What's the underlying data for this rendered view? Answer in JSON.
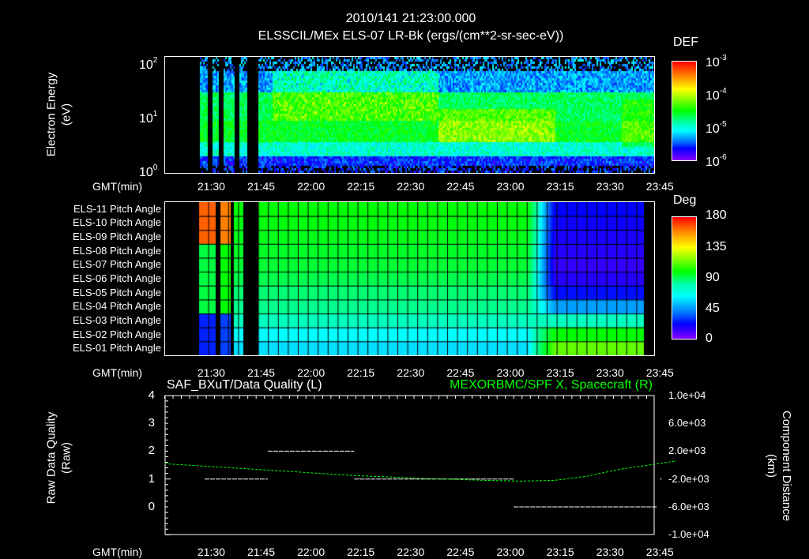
{
  "header": {
    "timestamp": "2010/141 21:23:00.000",
    "title": "ELSSCIL/MEx ELS-07 LR-Bk  (ergs/(cm**2-sr-sec-eV))"
  },
  "time_axis": {
    "label": "GMT(min)",
    "ticks": [
      "21:30",
      "21:45",
      "22:00",
      "22:15",
      "22:30",
      "22:45",
      "23:00",
      "23:15",
      "23:30",
      "23:45"
    ],
    "start_min": -7,
    "end_min": 140
  },
  "chart_data": [
    {
      "type": "heatmap",
      "name": "electron-spectrogram",
      "ylabel_line1": "Electron Energy",
      "ylabel_line2": "(eV)",
      "y_scale": "log",
      "ylim_eV": [
        1,
        140
      ],
      "yticks": [
        {
          "base": "10",
          "exp": "0"
        },
        {
          "base": "10",
          "exp": "1"
        },
        {
          "base": "10",
          "exp": "2"
        }
      ],
      "colorbar": {
        "title": "DEF",
        "scale": "log",
        "range": [
          1e-06,
          0.001
        ],
        "ticks": [
          {
            "base": "10",
            "exp": "-3"
          },
          {
            "base": "10",
            "exp": "-4"
          },
          {
            "base": "10",
            "exp": "-5"
          },
          {
            "base": "10",
            "exp": "-6"
          }
        ]
      },
      "data_gaps_min": [
        [
          -7,
          3
        ],
        [
          5.5,
          7
        ],
        [
          9,
          10.5
        ],
        [
          13.5,
          15
        ],
        [
          17.5,
          21
        ]
      ]
    },
    {
      "type": "heatmap",
      "name": "pitch-angle",
      "rows": [
        "ELS-11 Pitch Angle",
        "ELS-10 Pitch Angle",
        "ELS-09 Pitch Angle",
        "ELS-08 Pitch Angle",
        "ELS-07 Pitch Angle",
        "ELS-06 Pitch Angle",
        "ELS-05 Pitch Angle",
        "ELS-04 Pitch Angle",
        "ELS-03 Pitch Angle",
        "ELS-02 Pitch Angle",
        "ELS-01 Pitch Angle"
      ],
      "early_deg": [
        100,
        98,
        96,
        94,
        92,
        88,
        82,
        78,
        70,
        60,
        55
      ],
      "late_deg": [
        20,
        18,
        16,
        14,
        12,
        14,
        22,
        45,
        70,
        100,
        115
      ],
      "transition_min": [
        102,
        110
      ],
      "colorbar": {
        "title": "Deg",
        "range": [
          0,
          180
        ],
        "ticks": [
          "180",
          "135",
          "90",
          "45",
          "0"
        ]
      },
      "data_gaps_min": [
        [
          -7,
          3
        ],
        [
          8,
          9.5
        ],
        [
          12.5,
          13.5
        ],
        [
          16.5,
          21
        ],
        [
          137,
          147
        ]
      ]
    },
    {
      "type": "line",
      "name": "data-quality-and-position",
      "left_title": "SAF_BXuT/Data Quality (L)",
      "right_title": "MEXORBMC/SPF X, Spacecraft (R)",
      "ylabel_left_line1": "Raw Data Quality",
      "ylabel_left_line2": "(Raw)",
      "ylabel_right_line1": "Component Distance",
      "ylabel_right_line2": "(km)",
      "left_ylim": [
        -1,
        4
      ],
      "left_ticks": [
        "4",
        "3",
        "2",
        "1",
        "0"
      ],
      "right_ylim": [
        -10000,
        10000
      ],
      "right_ticks": [
        "1.0e+04",
        "6.0e+03",
        "2.0e+03",
        "-2.0e+03",
        "-6.0e+03",
        "-1.0e+04"
      ],
      "series": [
        {
          "name": "Data Quality",
          "color": "#ffffff",
          "segments": [
            {
              "x": [
                5,
                24
              ],
              "y": 1
            },
            {
              "x": [
                24,
                50
              ],
              "y": 2
            },
            {
              "x": [
                50,
                98
              ],
              "y": 1
            },
            {
              "x": [
                98,
                141
              ],
              "y": 0
            },
            {
              "x": [
                142,
                142.5
              ],
              "y": 1
            }
          ]
        },
        {
          "name": "SPF X",
          "color": "#00ff00",
          "x_min": [
            -7,
            10,
            30,
            50,
            70,
            90,
            100,
            110,
            120,
            130,
            147
          ],
          "y_km": [
            200,
            -300,
            -900,
            -1500,
            -1900,
            -2200,
            -2300,
            -2200,
            -1600,
            -600,
            600
          ]
        }
      ]
    }
  ]
}
